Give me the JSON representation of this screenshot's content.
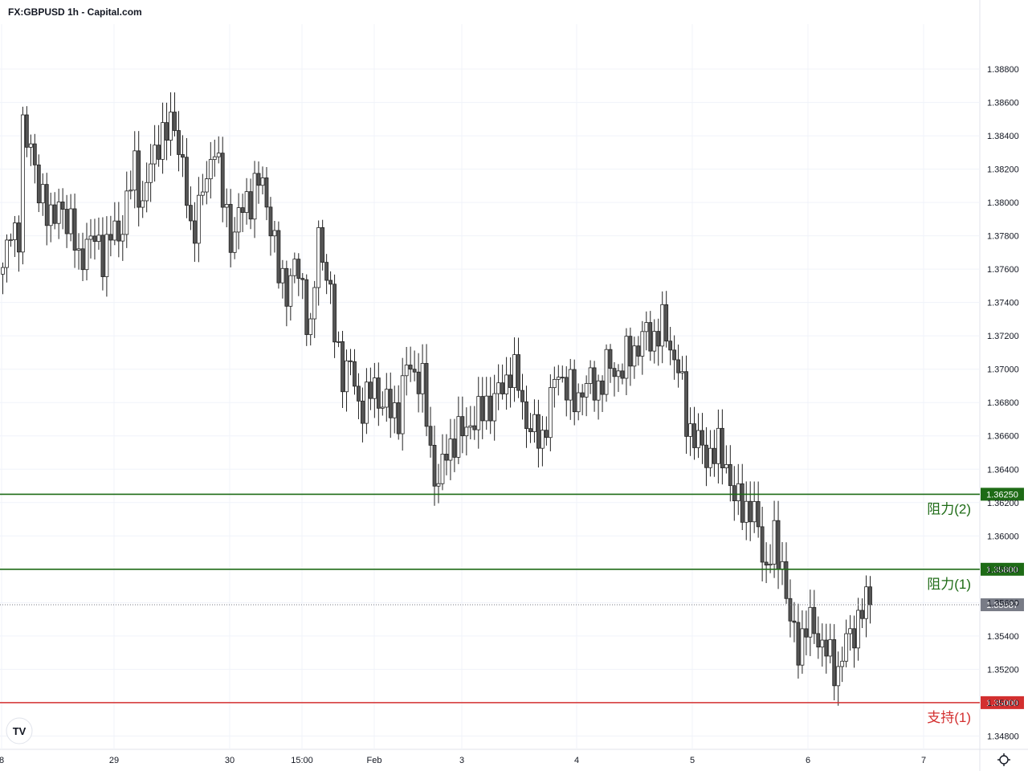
{
  "title": "FX:GBPUSD 1h - Capital.com",
  "watermark": "TV",
  "colors": {
    "resistance": "#1e6b16",
    "support": "#d32f2f",
    "current": "#787b86",
    "candle_up": "#ffffff",
    "candle_down": "#555555",
    "wick": "#222222",
    "grid": "#f0f3fa"
  },
  "chart_data": {
    "type": "candlestick",
    "y_range": [
      1.3472,
      1.3907
    ],
    "y_ticks": [
      "1.34800",
      "1.35000",
      "1.35200",
      "1.35400",
      "1.35600",
      "1.35800",
      "1.36000",
      "1.36200",
      "1.36400",
      "1.36600",
      "1.36800",
      "1.37000",
      "1.37200",
      "1.37400",
      "1.37600",
      "1.37800",
      "1.38000",
      "1.38200",
      "1.38400",
      "1.38600",
      "1.38800"
    ],
    "x_ticks": [
      "8",
      "29",
      "30",
      "15:00",
      "Feb",
      "3",
      "4",
      "5",
      "6",
      "7"
    ],
    "levels": [
      {
        "name": "阻力(2)",
        "value": 1.3625,
        "label": "1.36250",
        "kind": "resistance"
      },
      {
        "name": "阻力(1)",
        "value": 1.358,
        "label": "1.35800",
        "kind": "resistance"
      },
      {
        "name": "支持(1)",
        "value": 1.35,
        "label": "1.35000",
        "kind": "support"
      }
    ],
    "current_price": {
      "value": 1.35587,
      "label": "1.35587"
    },
    "anchors": [
      [
        0,
        1.3755
      ],
      [
        2,
        1.379
      ],
      [
        4,
        1.3775
      ],
      [
        5,
        1.384
      ],
      [
        7,
        1.384
      ],
      [
        9,
        1.38
      ],
      [
        11,
        1.38
      ],
      [
        13,
        1.379
      ],
      [
        15,
        1.3795
      ],
      [
        17,
        1.379
      ],
      [
        19,
        1.376
      ],
      [
        21,
        1.378
      ],
      [
        23,
        1.3775
      ],
      [
        25,
        1.377
      ],
      [
        27,
        1.378
      ],
      [
        29,
        1.378
      ],
      [
        31,
        1.38
      ],
      [
        33,
        1.382
      ],
      [
        35,
        1.38
      ],
      [
        37,
        1.382
      ],
      [
        39,
        1.384
      ],
      [
        41,
        1.384
      ],
      [
        43,
        1.385
      ],
      [
        45,
        1.382
      ],
      [
        47,
        1.378
      ],
      [
        49,
        1.38
      ],
      [
        51,
        1.381
      ],
      [
        53,
        1.384
      ],
      [
        55,
        1.38
      ],
      [
        57,
        1.378
      ],
      [
        59,
        1.379
      ],
      [
        61,
        1.38
      ],
      [
        63,
        1.381
      ],
      [
        65,
        1.381
      ],
      [
        67,
        1.379
      ],
      [
        69,
        1.3755
      ],
      [
        71,
        1.375
      ],
      [
        73,
        1.376
      ],
      [
        75,
        1.375
      ],
      [
        77,
        1.372
      ],
      [
        79,
        1.378
      ],
      [
        81,
        1.376
      ],
      [
        83,
        1.372
      ],
      [
        85,
        1.37
      ],
      [
        87,
        1.37
      ],
      [
        89,
        1.368
      ],
      [
        91,
        1.368
      ],
      [
        93,
        1.369
      ],
      [
        95,
        1.368
      ],
      [
        97,
        1.3675
      ],
      [
        99,
        1.3675
      ],
      [
        101,
        1.37
      ],
      [
        103,
        1.37
      ],
      [
        105,
        1.369
      ],
      [
        107,
        1.365
      ],
      [
        109,
        1.363
      ],
      [
        111,
        1.365
      ],
      [
        113,
        1.366
      ],
      [
        115,
        1.366
      ],
      [
        117,
        1.367
      ],
      [
        119,
        1.367
      ],
      [
        121,
        1.368
      ],
      [
        123,
        1.368
      ],
      [
        125,
        1.369
      ],
      [
        127,
        1.37
      ],
      [
        129,
        1.369
      ],
      [
        131,
        1.367
      ],
      [
        133,
        1.366
      ],
      [
        135,
        1.366
      ],
      [
        137,
        1.368
      ],
      [
        139,
        1.37
      ],
      [
        141,
        1.369
      ],
      [
        143,
        1.368
      ],
      [
        145,
        1.369
      ],
      [
        147,
        1.369
      ],
      [
        149,
        1.369
      ],
      [
        151,
        1.37
      ],
      [
        153,
        1.37
      ],
      [
        155,
        1.37
      ],
      [
        157,
        1.371
      ],
      [
        159,
        1.3715
      ],
      [
        161,
        1.372
      ],
      [
        163,
        1.372
      ],
      [
        165,
        1.3725
      ],
      [
        167,
        1.3715
      ],
      [
        169,
        1.37
      ],
      [
        171,
        1.367
      ],
      [
        173,
        1.366
      ],
      [
        175,
        1.365
      ],
      [
        177,
        1.365
      ],
      [
        179,
        1.365
      ],
      [
        181,
        1.3645
      ],
      [
        183,
        1.362
      ],
      [
        185,
        1.362
      ],
      [
        187,
        1.3615
      ],
      [
        189,
        1.3605
      ],
      [
        191,
        1.358
      ],
      [
        193,
        1.3595
      ],
      [
        195,
        1.3585
      ],
      [
        197,
        1.3545
      ],
      [
        199,
        1.3535
      ],
      [
        201,
        1.3545
      ],
      [
        203,
        1.3545
      ],
      [
        205,
        1.3535
      ],
      [
        207,
        1.3525
      ],
      [
        209,
        1.352
      ],
      [
        211,
        1.3535
      ],
      [
        213,
        1.3545
      ],
      [
        215,
        1.3555
      ],
      [
        217,
        1.35587
      ]
    ],
    "candle_count": 218
  }
}
